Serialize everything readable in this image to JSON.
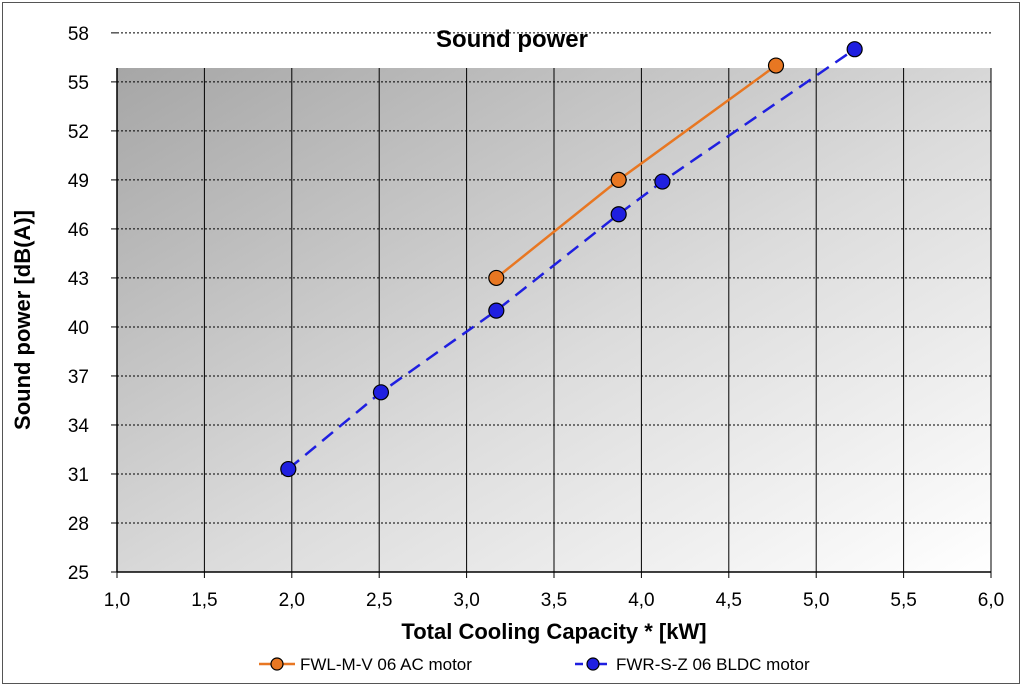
{
  "chart_data": {
    "type": "line",
    "title": "Sound power",
    "xlabel": "Total Cooling Capacity * [kW]",
    "ylabel": "Sound power [dB(A)]",
    "xlim": [
      1.0,
      6.0
    ],
    "ylim": [
      25,
      58
    ],
    "x_ticks": [
      "1,0",
      "1,5",
      "2,0",
      "2,5",
      "3,0",
      "3,5",
      "4,0",
      "4,5",
      "5,0",
      "5,5",
      "6,0"
    ],
    "y_ticks": [
      "25",
      "28",
      "31",
      "34",
      "37",
      "40",
      "43",
      "46",
      "49",
      "52",
      "55",
      "58"
    ],
    "grid": true,
    "legend_position": "bottom",
    "series": [
      {
        "name": "FWL-M-V 06 AC motor",
        "color": "#e87722",
        "line_style": "solid",
        "points": [
          {
            "x": 3.17,
            "y": 43
          },
          {
            "x": 3.87,
            "y": 49
          },
          {
            "x": 4.77,
            "y": 56
          }
        ]
      },
      {
        "name": "FWR-S-Z 06 BLDC motor",
        "color": "#1f1fe0",
        "line_style": "dashed",
        "points": [
          {
            "x": 1.98,
            "y": 31.3
          },
          {
            "x": 2.51,
            "y": 36
          },
          {
            "x": 3.17,
            "y": 41
          },
          {
            "x": 3.87,
            "y": 46.9
          },
          {
            "x": 4.12,
            "y": 48.9
          },
          {
            "x": 5.22,
            "y": 57
          }
        ]
      }
    ]
  }
}
